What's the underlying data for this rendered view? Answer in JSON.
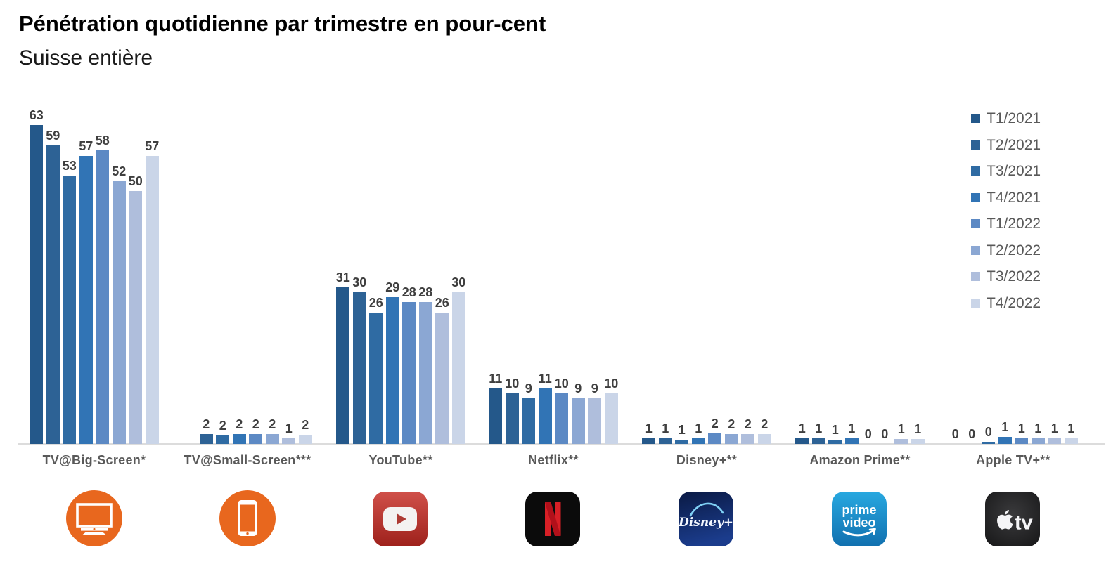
{
  "title": "Pénétration quotidienne par trimestre en pour-cent",
  "subtitle": "Suisse entière",
  "chart_data": {
    "type": "bar",
    "title": "Pénétration quotidienne par trimestre en pour-cent",
    "subtitle": "Suisse entière",
    "unit": "%",
    "ylim": [
      0,
      65
    ],
    "grid": false,
    "legend_position": "top-right",
    "series_labels": [
      "T1/2021",
      "T2/2021",
      "T3/2021",
      "T4/2021",
      "T1/2022",
      "T2/2022",
      "T3/2022",
      "T4/2022"
    ],
    "palette": [
      "#24588A",
      "#2D6295",
      "#2F6BA3",
      "#3174B5",
      "#5C89C4",
      "#8BA7D3",
      "#AFBEDC",
      "#CAD5E8"
    ],
    "groups": [
      {
        "category": "TV@Big-Screen*",
        "icon": "tv-big-screen-icon",
        "labels": [
          "63",
          "59",
          "53",
          "57",
          "58",
          "52",
          "50",
          "57"
        ],
        "values": [
          63,
          59,
          53,
          57,
          58,
          52,
          50,
          57
        ]
      },
      {
        "category": "TV@Small-Screen***",
        "icon": "tv-small-screen-icon",
        "labels": [
          "",
          "2",
          "2",
          "2",
          "2",
          "2",
          "1",
          "2"
        ],
        "values": [
          null,
          2,
          1.7,
          2,
          1.9,
          1.9,
          1.1,
          1.8
        ]
      },
      {
        "category": "YouTube**",
        "icon": "youtube-icon",
        "labels": [
          "31",
          "30",
          "26",
          "29",
          "28",
          "28",
          "26",
          "30"
        ],
        "values": [
          31,
          30,
          26,
          29,
          28,
          28,
          26,
          30
        ]
      },
      {
        "category": "Netflix**",
        "icon": "netflix-icon",
        "labels": [
          "11",
          "10",
          "9",
          "11",
          "10",
          "9",
          "9",
          "10"
        ],
        "values": [
          11,
          10,
          9,
          11,
          10,
          9,
          9,
          10
        ]
      },
      {
        "category": "Disney+**",
        "icon": "disney-plus-icon",
        "labels": [
          "1",
          "1",
          "1",
          "1",
          "2",
          "2",
          "2",
          "2"
        ],
        "values": [
          1.1,
          1.1,
          0.9,
          1.1,
          2.1,
          2,
          1.9,
          1.9
        ]
      },
      {
        "category": "Amazon Prime**",
        "icon": "prime-video-icon",
        "labels": [
          "1",
          "1",
          "1",
          "1",
          "0",
          "0",
          "1",
          "1"
        ],
        "values": [
          1.1,
          1.1,
          0.9,
          1.1,
          0,
          0,
          1,
          1
        ]
      },
      {
        "category": "Apple TV+**",
        "icon": "apple-tv-icon",
        "labels": [
          "0",
          "0",
          "0",
          "1",
          "1",
          "1",
          "1",
          "1"
        ],
        "values": [
          0,
          0,
          0.4,
          1.4,
          1.1,
          1.1,
          1.1,
          1.1
        ]
      }
    ]
  },
  "icon_text": {
    "disney": "Disney+",
    "prime_line1": "prime",
    "prime_line2": "video",
    "apple_tv": "tv"
  }
}
